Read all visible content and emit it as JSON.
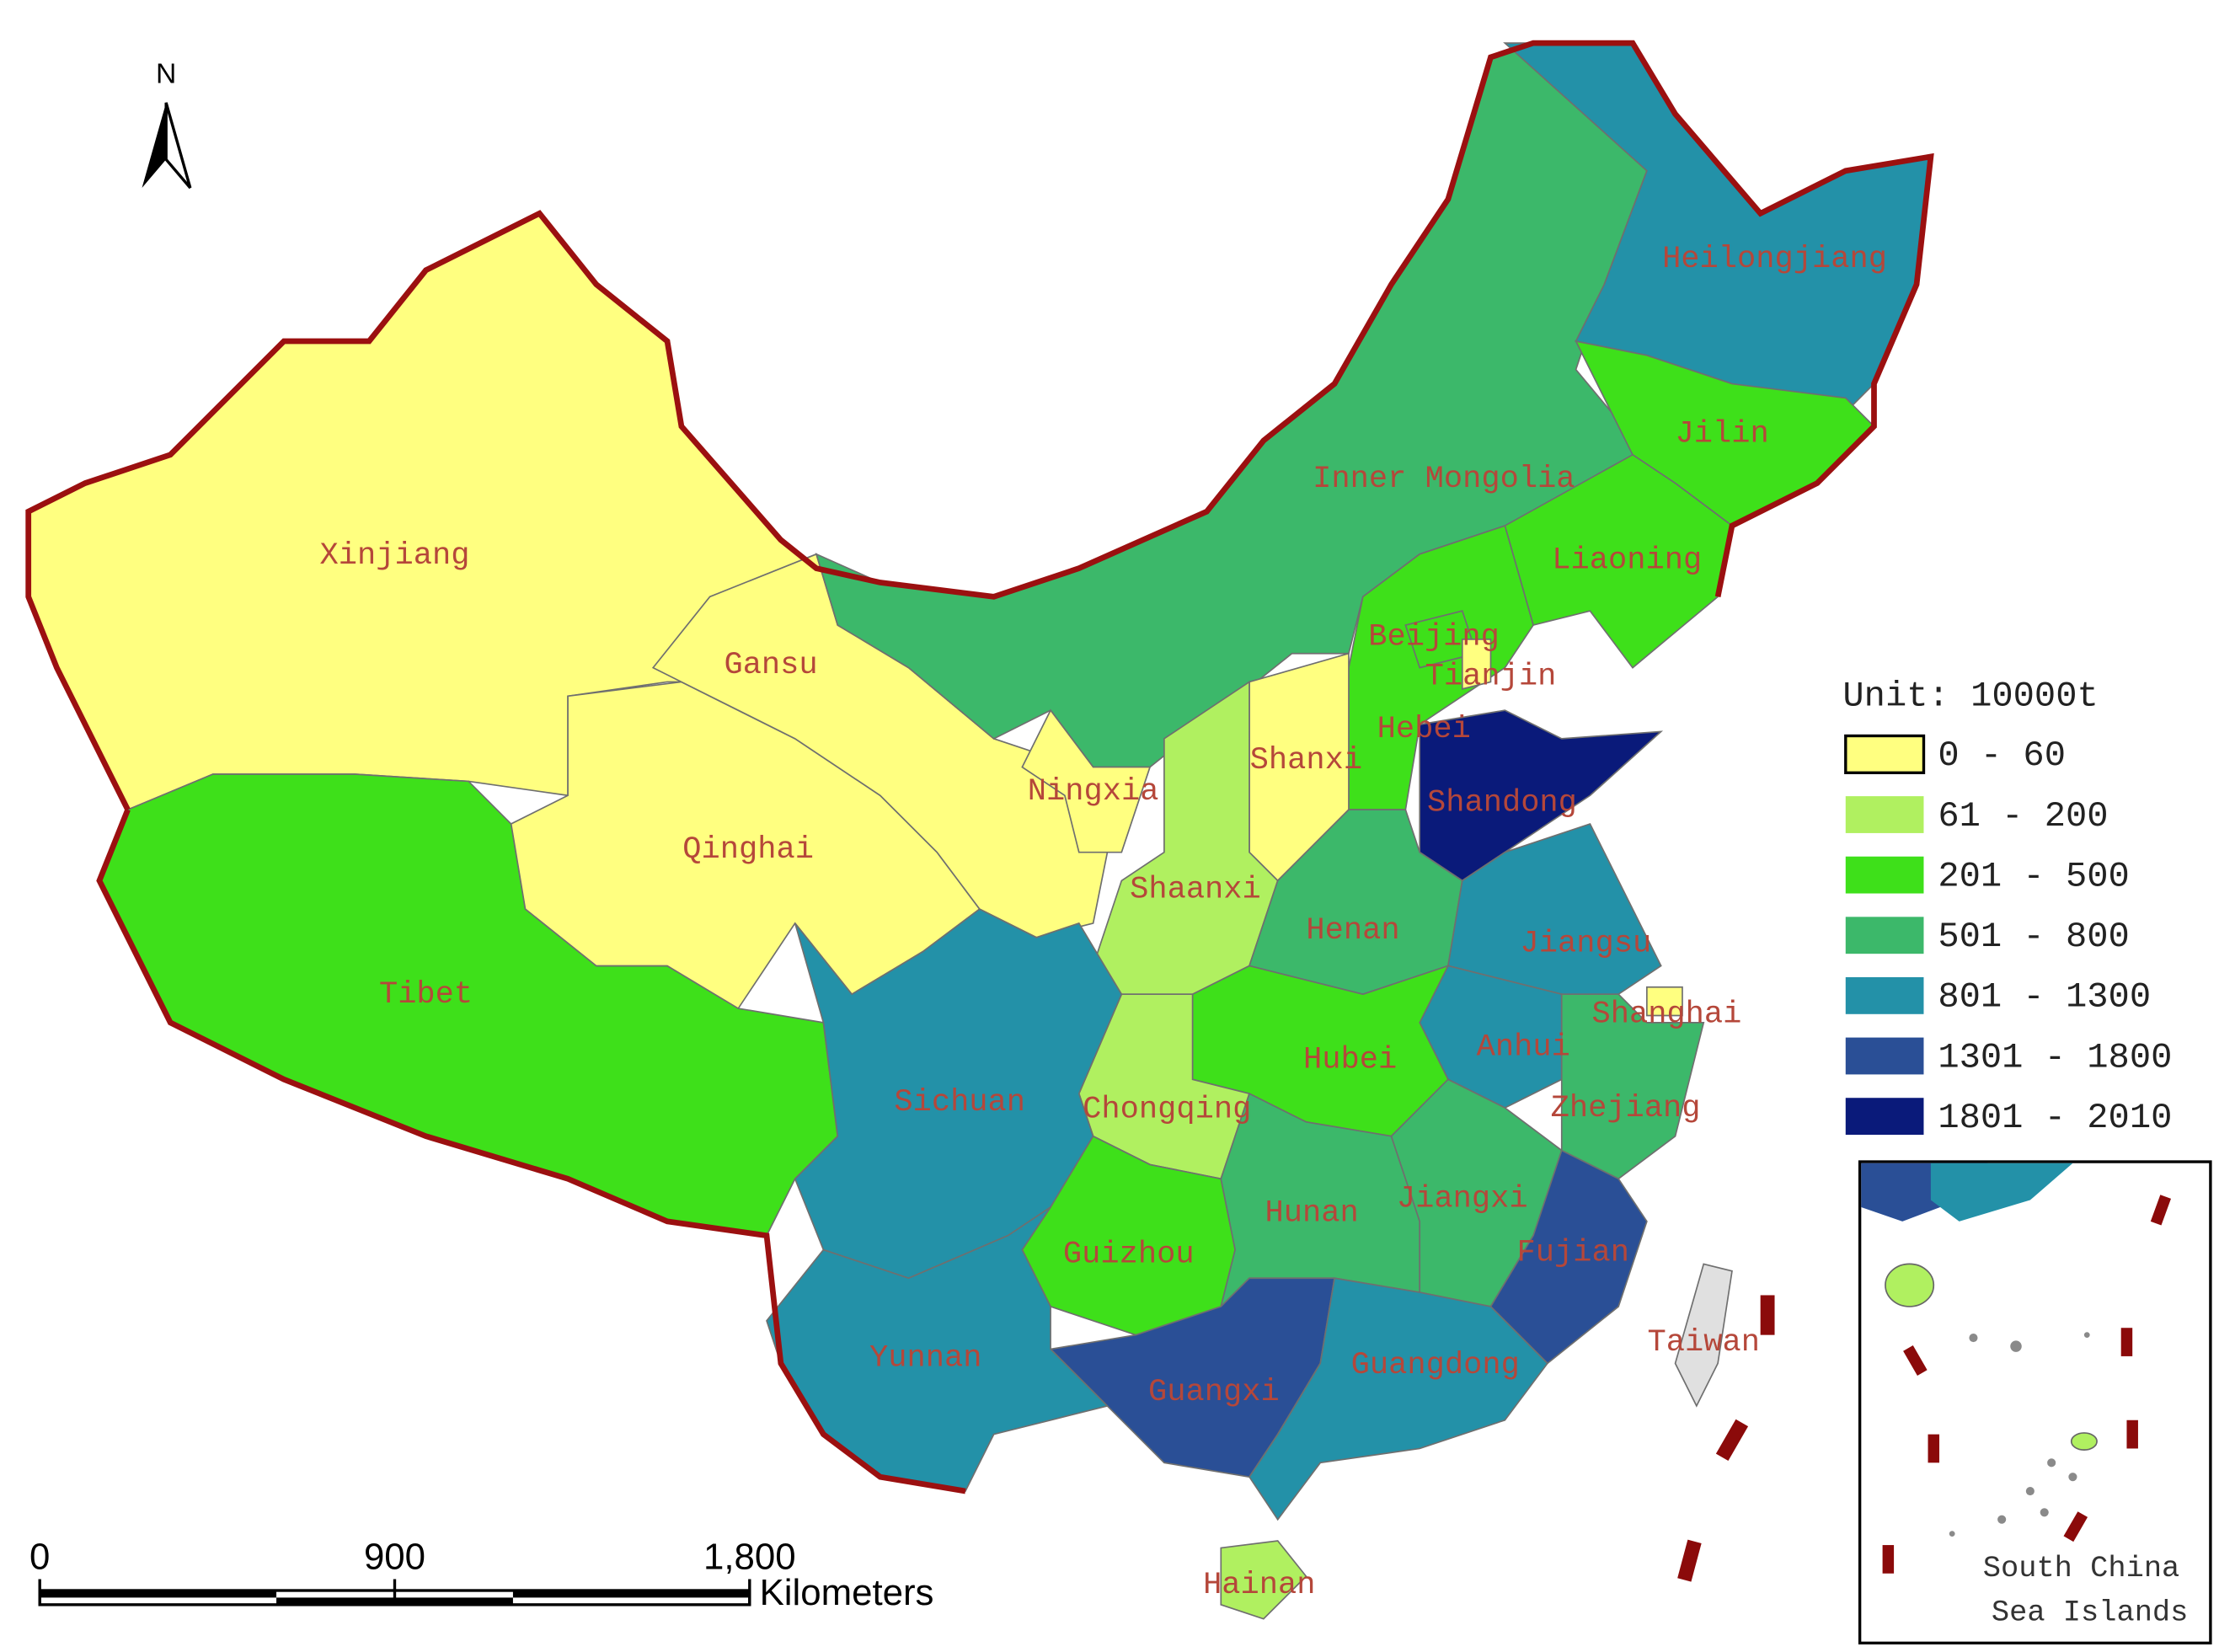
{
  "north_arrow": "N",
  "regions": [
    {
      "name": "Xinjiang",
      "color": "#ffff80"
    },
    {
      "name": "Gansu",
      "color": "#ffff80"
    },
    {
      "name": "Qinghai",
      "color": "#ffff80"
    },
    {
      "name": "Tibet",
      "color": "#3ee01a"
    },
    {
      "name": "Inner Mongolia",
      "color": "#3cb86a"
    },
    {
      "name": "Heilongjiang",
      "color": "#2391a8"
    },
    {
      "name": "Jilin",
      "color": "#3ee01a"
    },
    {
      "name": "Liaoning",
      "color": "#3ee01a"
    },
    {
      "name": "Beijing",
      "color": "#3ee01a"
    },
    {
      "name": "Tianjin",
      "color": "#ffff80"
    },
    {
      "name": "Hebei",
      "color": "#3ee01a"
    },
    {
      "name": "Shanxi",
      "color": "#ffff80"
    },
    {
      "name": "Shaanxi",
      "color": "#b0f060"
    },
    {
      "name": "Ningxia",
      "color": "#ffff80"
    },
    {
      "name": "Shandong",
      "color": "#0a1a7a"
    },
    {
      "name": "Henan",
      "color": "#3cb86a"
    },
    {
      "name": "Jiangsu",
      "color": "#2391a8"
    },
    {
      "name": "Anhui",
      "color": "#2391a8"
    },
    {
      "name": "Shanghai",
      "color": "#ffff80"
    },
    {
      "name": "Zhejiang",
      "color": "#3cb86a"
    },
    {
      "name": "Hubei",
      "color": "#3ee01a"
    },
    {
      "name": "Chongqing",
      "color": "#b0f060"
    },
    {
      "name": "Sichuan",
      "color": "#2391a8"
    },
    {
      "name": "Guizhou",
      "color": "#3ee01a"
    },
    {
      "name": "Hunan",
      "color": "#3cb86a"
    },
    {
      "name": "Jiangxi",
      "color": "#3cb86a"
    },
    {
      "name": "Fujian",
      "color": "#2a4f96"
    },
    {
      "name": "Guangxi",
      "color": "#2a4f96"
    },
    {
      "name": "Yunnan",
      "color": "#2391a8"
    },
    {
      "name": "Guangdong",
      "color": "#2391a8"
    },
    {
      "name": "Hainan",
      "color": "#b0f060"
    },
    {
      "name": "Taiwan",
      "color": "#e0e0e0"
    }
  ],
  "legend": {
    "title": "Unit: 10000t",
    "items": [
      {
        "label": "0 - 60",
        "color": "#ffff80"
      },
      {
        "label": "61 - 200",
        "color": "#b0f060"
      },
      {
        "label": "201 - 500",
        "color": "#3ee01a"
      },
      {
        "label": "501 - 800",
        "color": "#3cb86a"
      },
      {
        "label": "801 - 1300",
        "color": "#2391a8"
      },
      {
        "label": "1301 - 1800",
        "color": "#2a4f96"
      },
      {
        "label": "1801 - 2010",
        "color": "#0a1a7a"
      }
    ]
  },
  "scale_bar": {
    "ticks": [
      0,
      900,
      {
        "value": 1800,
        "label": "1,800"
      }
    ],
    "unit": "Kilometers"
  },
  "inset": {
    "label_lines": [
      "South China",
      "Sea Islands"
    ]
  }
}
